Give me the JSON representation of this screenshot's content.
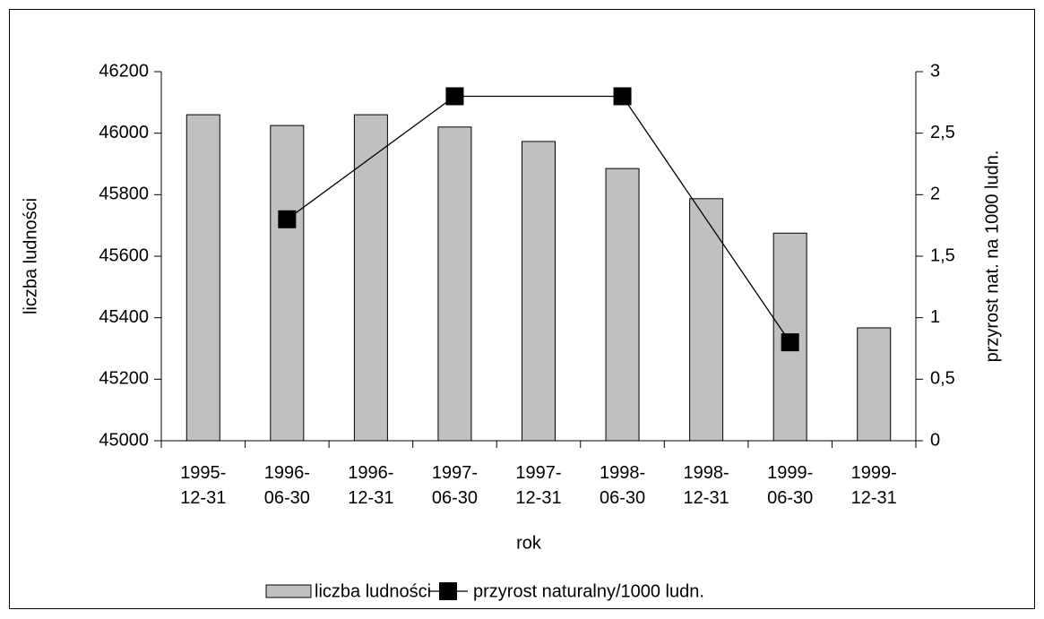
{
  "chart_data": {
    "type": "bar",
    "categories": [
      "1995-12-31",
      "1996-06-30",
      "1996-12-31",
      "1997-06-30",
      "1997-12-31",
      "1998-06-30",
      "1998-12-31",
      "1999-06-30",
      "1999-12-31"
    ],
    "series": [
      {
        "name": "liczba ludności",
        "type": "bar",
        "color": "#c0c0c0",
        "values": [
          46060,
          46025,
          46060,
          46020,
          45973,
          45885,
          45787,
          45675,
          45367
        ]
      },
      {
        "name": "przyrost naturalny/1000 ludn.",
        "type": "line",
        "axis": "y2",
        "color": "#000000",
        "values": [
          null,
          1.8,
          null,
          2.8,
          null,
          2.8,
          null,
          0.8,
          null
        ]
      }
    ],
    "span_gaps": true,
    "xlabel": "rok",
    "ylabel": "liczba ludności",
    "y2label": "przyrost nat. na 1000 ludn.",
    "ylim": [
      45000,
      46200
    ],
    "yticks": [
      45000,
      45200,
      45400,
      45600,
      45800,
      46000,
      46200
    ],
    "y2lim": [
      0,
      3
    ],
    "y2ticks": [
      0,
      {
        "value": 0.5,
        "label": "0,5"
      },
      1,
      {
        "value": 1.5,
        "label": "1,5"
      },
      2,
      {
        "value": 2.5,
        "label": "2,5"
      },
      3
    ],
    "legend": "bottom"
  }
}
